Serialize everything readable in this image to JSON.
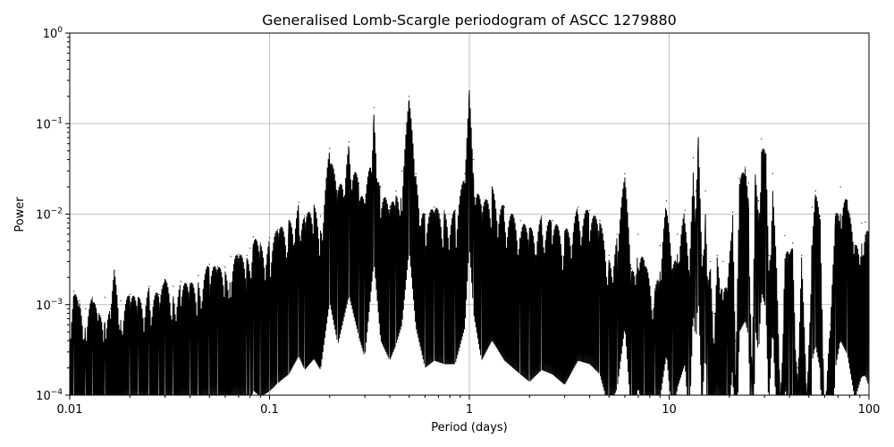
{
  "chart_data": {
    "type": "line",
    "title": "Generalised Lomb-Scargle periodogram of ASCC 1279880",
    "xlabel": "Period (days)",
    "ylabel": "Power",
    "xscale": "log",
    "yscale": "log",
    "xlim": [
      0.01,
      100
    ],
    "ylim": [
      0.0001,
      1
    ],
    "grid": true,
    "x_ticks": [
      {
        "value": 0.01,
        "label": "0.01"
      },
      {
        "value": 0.1,
        "label": "0.1"
      },
      {
        "value": 1,
        "label": "1"
      },
      {
        "value": 10,
        "label": "10"
      },
      {
        "value": 100,
        "label": "100"
      }
    ],
    "y_ticks": [
      {
        "value": 0.0001,
        "base": "10",
        "exp": "−4"
      },
      {
        "value": 0.001,
        "base": "10",
        "exp": "−3"
      },
      {
        "value": 0.01,
        "base": "10",
        "exp": "−2"
      },
      {
        "value": 0.1,
        "base": "10",
        "exp": "−1"
      },
      {
        "value": 1,
        "base": "10",
        "exp": "0"
      }
    ],
    "series": [
      {
        "color": "#000000",
        "points": [
          [
            0.01,
            0.0007
          ],
          [
            0.0105,
            0.0014
          ],
          [
            0.0112,
            0.0011
          ],
          [
            0.012,
            0.0009
          ],
          [
            0.013,
            0.0012
          ],
          [
            0.014,
            0.0008
          ],
          [
            0.015,
            0.0012
          ],
          [
            0.016,
            0.0009
          ],
          [
            0.0167,
            0.0024
          ],
          [
            0.018,
            0.0011
          ],
          [
            0.02,
            0.0013
          ],
          [
            0.022,
            0.0012
          ],
          [
            0.025,
            0.0016
          ],
          [
            0.028,
            0.0013
          ],
          [
            0.03,
            0.0019
          ],
          [
            0.033,
            0.0016
          ],
          [
            0.036,
            0.0018
          ],
          [
            0.04,
            0.0017
          ],
          [
            0.044,
            0.0021
          ],
          [
            0.05,
            0.0028
          ],
          [
            0.055,
            0.0026
          ],
          [
            0.06,
            0.0026
          ],
          [
            0.064,
            0.0034
          ],
          [
            0.07,
            0.0036
          ],
          [
            0.077,
            0.0035
          ],
          [
            0.08,
            0.0042
          ],
          [
            0.083,
            0.0056
          ],
          [
            0.09,
            0.0048
          ],
          [
            0.1,
            0.0055
          ],
          [
            0.11,
            0.0068
          ],
          [
            0.125,
            0.0085
          ],
          [
            0.14,
            0.0135
          ],
          [
            0.15,
            0.0095
          ],
          [
            0.167,
            0.0125
          ],
          [
            0.18,
            0.0095
          ],
          [
            0.2,
            0.053
          ],
          [
            0.22,
            0.018
          ],
          [
            0.25,
            0.063
          ],
          [
            0.28,
            0.022
          ],
          [
            0.3,
            0.013
          ],
          [
            0.333,
            0.15
          ],
          [
            0.36,
            0.02
          ],
          [
            0.4,
            0.012
          ],
          [
            0.43,
            0.018
          ],
          [
            0.46,
            0.03
          ],
          [
            0.5,
            0.2
          ],
          [
            0.54,
            0.028
          ],
          [
            0.6,
            0.01
          ],
          [
            0.667,
            0.012
          ],
          [
            0.75,
            0.011
          ],
          [
            0.85,
            0.011
          ],
          [
            0.95,
            0.028
          ],
          [
            1.0,
            0.23
          ],
          [
            1.05,
            0.04
          ],
          [
            1.15,
            0.012
          ],
          [
            1.3,
            0.02
          ],
          [
            1.5,
            0.012
          ],
          [
            1.8,
            0.0085
          ],
          [
            2.0,
            0.007
          ],
          [
            2.3,
            0.0095
          ],
          [
            2.6,
            0.0085
          ],
          [
            3.0,
            0.0065
          ],
          [
            3.5,
            0.012
          ],
          [
            4.0,
            0.011
          ],
          [
            4.5,
            0.0085
          ],
          [
            5.0,
            0.0035
          ],
          [
            5.5,
            0.006
          ],
          [
            6.0,
            0.028
          ],
          [
            6.5,
            0.0025
          ],
          [
            7.0,
            0.006
          ],
          [
            7.5,
            0.003
          ],
          [
            8.5,
            0.0015
          ],
          [
            9.0,
            0.0045
          ],
          [
            9.7,
            0.014
          ],
          [
            10.4,
            0.0025
          ],
          [
            11.0,
            0.006
          ],
          [
            12.0,
            0.011
          ],
          [
            12.6,
            0.002
          ],
          [
            13.2,
            0.042
          ],
          [
            13.6,
            0.018
          ],
          [
            14.0,
            0.07
          ],
          [
            14.6,
            0.0035
          ],
          [
            15.2,
            0.018
          ],
          [
            15.6,
            0.0015
          ],
          [
            16.1,
            0.003
          ],
          [
            16.8,
            0.0008
          ],
          [
            17.4,
            0.0035
          ],
          [
            18.0,
            0.0015
          ],
          [
            18.6,
            0.003
          ],
          [
            19.5,
            0.0015
          ],
          [
            20.8,
            0.0105
          ],
          [
            21.5,
            0.0004
          ],
          [
            22.5,
            0.025
          ],
          [
            24.0,
            0.033
          ],
          [
            25.0,
            0.022
          ],
          [
            26.0,
            0.0002
          ],
          [
            27.0,
            0.027
          ],
          [
            28.0,
            0.014
          ],
          [
            29.0,
            0.068
          ],
          [
            30.5,
            0.045
          ],
          [
            31.5,
            0.0035
          ],
          [
            33.0,
            0.028
          ],
          [
            34.5,
            0.0025
          ],
          [
            36.0,
            0.0001
          ],
          [
            38.0,
            0.0058
          ],
          [
            40.0,
            0.0035
          ],
          [
            41.5,
            0.0048
          ],
          [
            44.0,
            0.0002
          ],
          [
            46.0,
            0.0035
          ],
          [
            49.0,
            0.0001
          ],
          [
            52.0,
            0.012
          ],
          [
            54.0,
            0.018
          ],
          [
            57.0,
            0.0095
          ],
          [
            60.0,
            0.0001
          ],
          [
            64.0,
            0.0006
          ],
          [
            68.0,
            0.01
          ],
          [
            72.0,
            0.02
          ],
          [
            78.0,
            0.014
          ],
          [
            85.0,
            0.0045
          ],
          [
            92.0,
            0.008
          ],
          [
            96.0,
            0.0082
          ],
          [
            100.0,
            0.0062
          ]
        ]
      }
    ]
  }
}
